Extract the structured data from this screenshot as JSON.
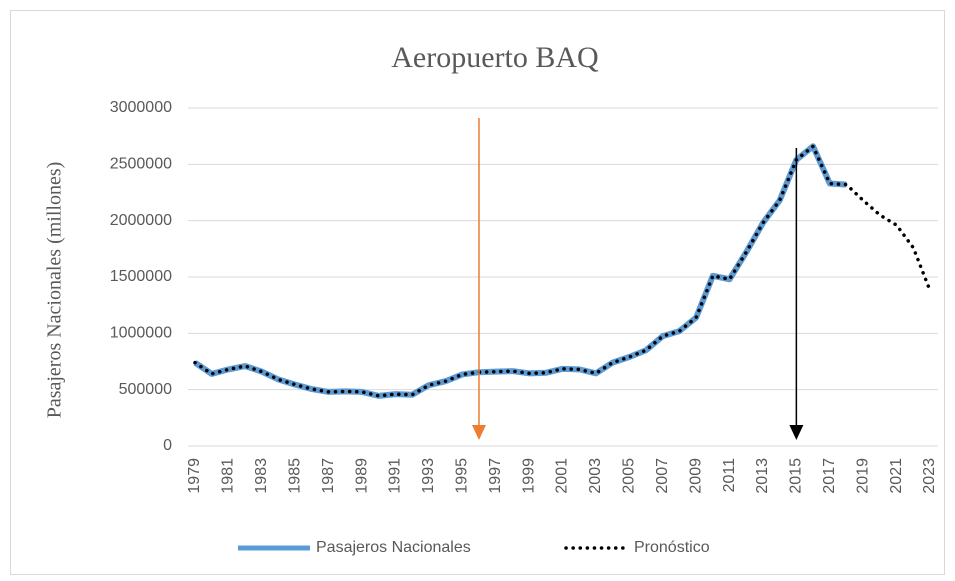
{
  "chart_data": {
    "type": "line",
    "title": "Aeropuerto BAQ",
    "y_label": "Pasajeros Nacionales (millones)",
    "categories": [
      "1979",
      null,
      "1981",
      null,
      "1983",
      null,
      "1985",
      null,
      "1987",
      null,
      "1989",
      null,
      "1991",
      null,
      "1993",
      null,
      "1995",
      null,
      "1997",
      null,
      "1999",
      null,
      "2001",
      null,
      "2003",
      null,
      "2005",
      null,
      "2007",
      null,
      "2009",
      null,
      "2011",
      null,
      "2013",
      null,
      "2015",
      null,
      "2017",
      null,
      "2019",
      null,
      "2021",
      null,
      "2023"
    ],
    "series": [
      {
        "name": "Pasajeros Nacionales",
        "color": "#5b9bd5",
        "style": "solid",
        "values": [
          740000,
          640000,
          680000,
          710000,
          660000,
          590000,
          545000,
          505000,
          480000,
          485000,
          480000,
          445000,
          460000,
          455000,
          540000,
          575000,
          635000,
          655000,
          660000,
          665000,
          645000,
          650000,
          685000,
          680000,
          645000,
          740000,
          790000,
          850000,
          975000,
          1020000,
          1140000,
          1510000,
          1480000,
          1720000,
          1980000,
          2180000,
          2540000,
          2660000,
          2330000,
          2320000,
          null,
          null,
          null,
          null,
          null
        ]
      },
      {
        "name": "Pronóstico",
        "color": "#000000",
        "style": "dotted",
        "values": [
          740000,
          640000,
          680000,
          710000,
          660000,
          590000,
          545000,
          505000,
          480000,
          485000,
          480000,
          445000,
          460000,
          455000,
          540000,
          575000,
          635000,
          655000,
          660000,
          665000,
          645000,
          650000,
          685000,
          680000,
          645000,
          740000,
          790000,
          850000,
          975000,
          1020000,
          1140000,
          1510000,
          1480000,
          1720000,
          1980000,
          2180000,
          2540000,
          2660000,
          2330000,
          2320000,
          2180000,
          2050000,
          1960000,
          1760000,
          1380000
        ]
      }
    ],
    "arrows": [
      {
        "x": 1996,
        "color": "#ed7d31"
      },
      {
        "x": 2015,
        "color": "#000000"
      }
    ],
    "ylim": [
      0,
      3000000
    ],
    "yticks": [
      0,
      500000,
      1000000,
      1500000,
      2000000,
      2500000,
      3000000
    ],
    "grid": true
  }
}
